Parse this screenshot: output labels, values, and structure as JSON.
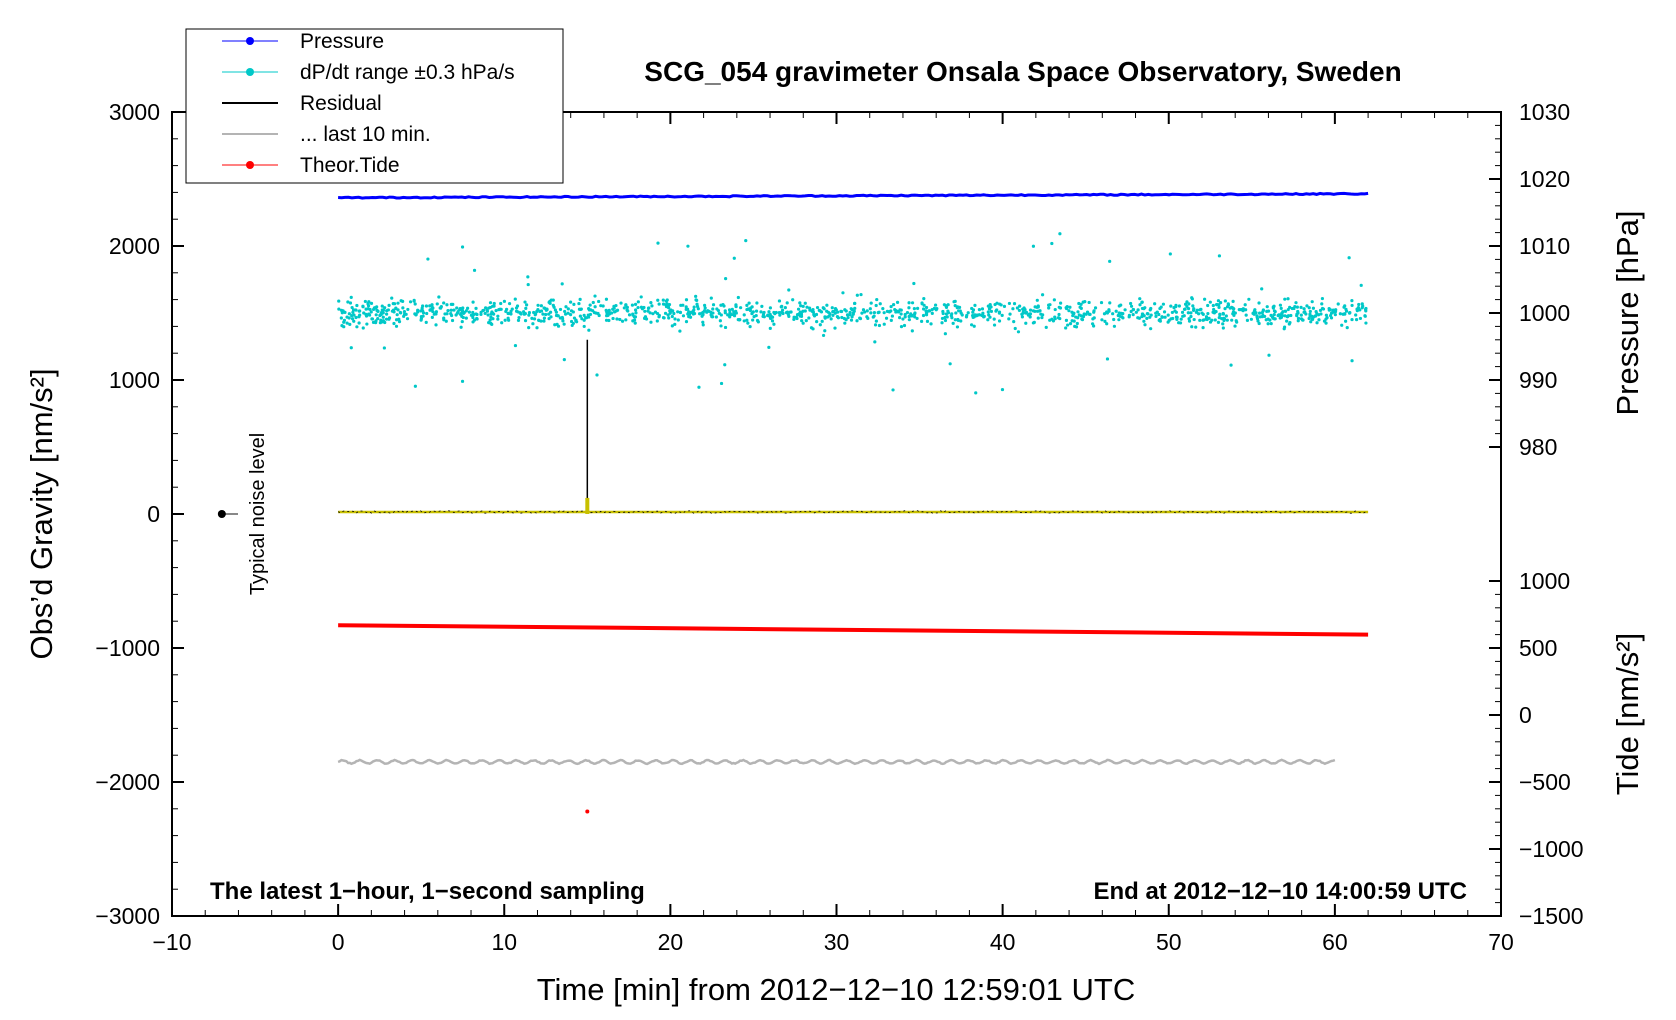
{
  "chart_data": {
    "type": "scatter",
    "title": "SCG_054 gravimeter Onsala Space Observatory, Sweden",
    "xlabel": "Time [min] from 2012−12−10 12:59:01 UTC",
    "ylabel_left": "Obs’d Gravity [nm/s²]",
    "ylabel_right_top": "Pressure [hPa]",
    "ylabel_right_bottom": "Tide [nm/s²]",
    "xlim": [
      -10,
      70
    ],
    "ylim": [
      -3000,
      3000
    ],
    "pressure_axis_range": [
      980,
      1030
    ],
    "tide_axis_range": [
      -1500,
      1000
    ],
    "x_ticks": [
      "−10",
      "0",
      "10",
      "20",
      "30",
      "40",
      "50",
      "60",
      "70"
    ],
    "y_ticks": [
      "3000",
      "2000",
      "1000",
      "0",
      "−1000",
      "−2000",
      "−3000"
    ],
    "pressure_ticks": [
      "1030",
      "1020",
      "1010",
      "1000",
      "990",
      "980"
    ],
    "tide_ticks": [
      "1000",
      "500",
      "0",
      "−500",
      "−1000",
      "−1500"
    ],
    "annotations": {
      "bottom_left": "The latest 1−hour, 1−second sampling",
      "bottom_right": "End at 2012−12−10 14:00:59 UTC",
      "noise_label": "Typical noise level"
    },
    "legend": {
      "placement": "top-left",
      "entries": [
        {
          "name": "Pressure",
          "color": "#0000ff"
        },
        {
          "name": "dP/dt range ±0.3 hPa/s",
          "color": "#00c8c8"
        },
        {
          "name": "Residual",
          "color": "#000000"
        },
        {
          "name": "... last 10 min.",
          "color": "#b4b4b4"
        },
        {
          "name": "Theor.Tide",
          "color": "#ff0000"
        }
      ]
    },
    "series": [
      {
        "name": "Pressure",
        "color": "#0000ff",
        "x": [
          0,
          62
        ],
        "y": [
          2360,
          2390
        ]
      },
      {
        "name": "dP/dt range ±0.3 hPa/s",
        "color": "#00c8c8",
        "x": [
          0,
          62
        ],
        "y_center": 1500,
        "y_spread": 140
      },
      {
        "name": "Residual",
        "color": "#000000",
        "x": [
          0,
          62
        ],
        "y": [
          15,
          15
        ],
        "spike": {
          "x": 15,
          "y": 1300
        }
      },
      {
        "name": "... last 10 min.",
        "color": "#b4b4b4",
        "x": [
          0,
          60
        ],
        "y": [
          -1850,
          -1850
        ]
      },
      {
        "name": "Theor.Tide",
        "color": "#ff0000",
        "x": [
          0,
          62
        ],
        "y": [
          -830,
          -900
        ],
        "outlier": {
          "x": 15,
          "y": -2220
        }
      }
    ],
    "noise_marker": {
      "x": -7,
      "y": 0
    }
  }
}
